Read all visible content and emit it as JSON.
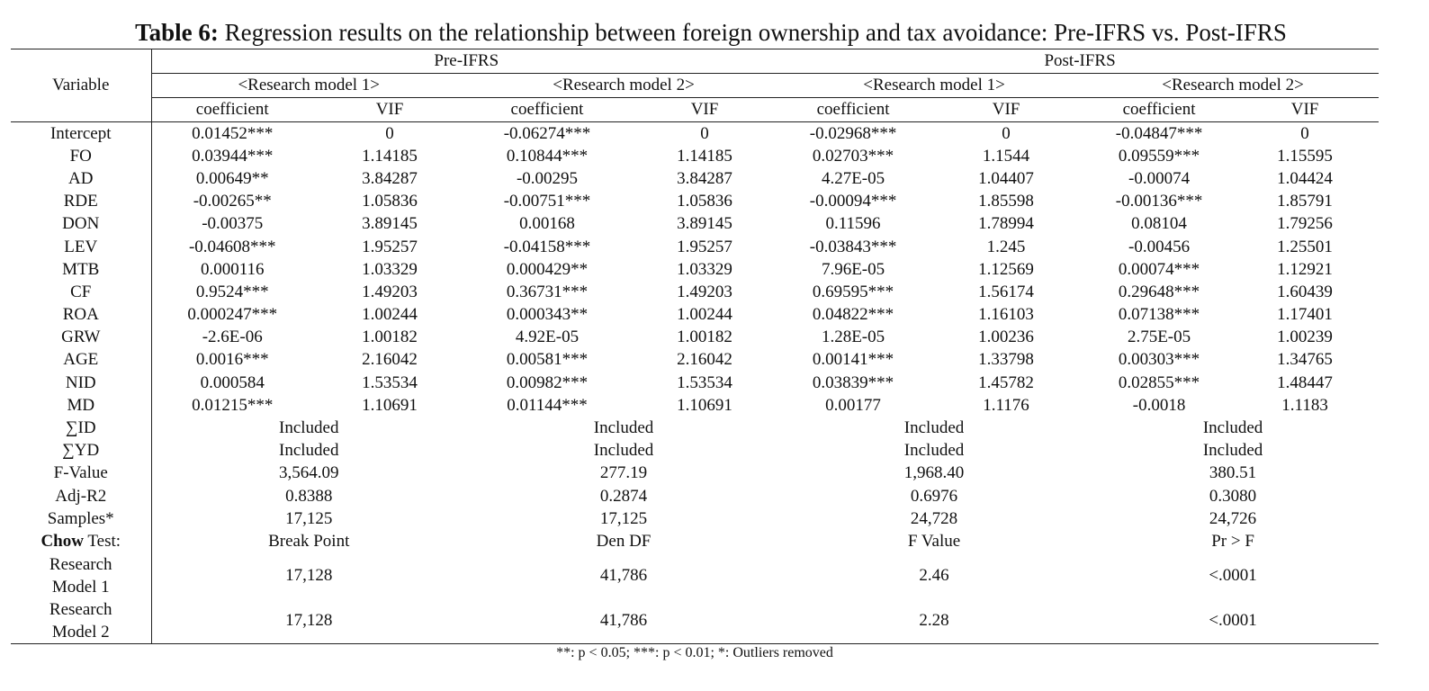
{
  "title": {
    "bold": "Table 6:",
    "text": " Regression results on the relationship between foreign ownership and tax avoidance: Pre-IFRS vs. Post-IFRS"
  },
  "header": {
    "variable": "Variable",
    "pre": "Pre-IFRS",
    "post": "Post-IFRS",
    "models": [
      "<Research model 1>",
      "<Research model 2>",
      "<Research model 1>",
      "<Research model 2>"
    ],
    "coef": "coefficient",
    "vif": "VIF"
  },
  "rows": [
    {
      "var": "Intercept",
      "cells": [
        "0.01452***",
        "0",
        "-0.06274***",
        "0",
        "-0.02968***",
        "0",
        "-0.04847***",
        "0"
      ]
    },
    {
      "var": "FO",
      "cells": [
        "0.03944***",
        "1.14185",
        "0.10844***",
        "1.14185",
        "0.02703***",
        "1.1544",
        "0.09559***",
        "1.15595"
      ]
    },
    {
      "var": "AD",
      "cells": [
        "0.00649**",
        "3.84287",
        "-0.00295",
        "3.84287",
        "4.27E-05",
        "1.04407",
        "-0.00074",
        "1.04424"
      ]
    },
    {
      "var": "RDE",
      "cells": [
        "-0.00265**",
        "1.05836",
        "-0.00751***",
        "1.05836",
        "-0.00094***",
        "1.85598",
        "-0.00136***",
        "1.85791"
      ]
    },
    {
      "var": "DON",
      "cells": [
        "-0.00375",
        "3.89145",
        "0.00168",
        "3.89145",
        "0.11596",
        "1.78994",
        "0.08104",
        "1.79256"
      ]
    },
    {
      "var": "LEV",
      "cells": [
        "-0.04608***",
        "1.95257",
        "-0.04158***",
        "1.95257",
        "-0.03843***",
        "1.245",
        "-0.00456",
        "1.25501"
      ]
    },
    {
      "var": "MTB",
      "cells": [
        "0.000116",
        "1.03329",
        "0.000429**",
        "1.03329",
        "7.96E-05",
        "1.12569",
        "0.00074***",
        "1.12921"
      ]
    },
    {
      "var": "CF",
      "cells": [
        "0.9524***",
        "1.49203",
        "0.36731***",
        "1.49203",
        "0.69595***",
        "1.56174",
        "0.29648***",
        "1.60439"
      ]
    },
    {
      "var": "ROA",
      "cells": [
        "0.000247***",
        "1.00244",
        "0.000343**",
        "1.00244",
        "0.04822***",
        "1.16103",
        "0.07138***",
        "1.17401"
      ]
    },
    {
      "var": "GRW",
      "cells": [
        "-2.6E-06",
        "1.00182",
        "4.92E-05",
        "1.00182",
        "1.28E-05",
        "1.00236",
        "2.75E-05",
        "1.00239"
      ]
    },
    {
      "var": "AGE",
      "cells": [
        "0.0016***",
        "2.16042",
        "0.00581***",
        "2.16042",
        "0.00141***",
        "1.33798",
        "0.00303***",
        "1.34765"
      ]
    },
    {
      "var": "NID",
      "cells": [
        "0.000584",
        "1.53534",
        "0.00982***",
        "1.53534",
        "0.03839***",
        "1.45782",
        "0.02855***",
        "1.48447"
      ]
    },
    {
      "var": "MD",
      "cells": [
        "0.01215***",
        "1.10691",
        "0.01144***",
        "1.10691",
        "0.00177",
        "1.1176",
        "-0.0018",
        "1.1183"
      ]
    }
  ],
  "summary": [
    {
      "var": "∑ID",
      "cells": [
        "Included",
        "Included",
        "Included",
        "Included"
      ]
    },
    {
      "var": "∑YD",
      "cells": [
        "Included",
        "Included",
        "Included",
        "Included"
      ]
    },
    {
      "var": "F-Value",
      "cells": [
        "3,564.09",
        "277.19",
        "1,968.40",
        "380.51"
      ]
    },
    {
      "var": "Adj-R2",
      "cells": [
        "0.8388",
        "0.2874",
        "0.6976",
        "0.3080"
      ]
    },
    {
      "var": "Samples*",
      "cells": [
        "17,125",
        "17,125",
        "24,728",
        "24,726"
      ]
    }
  ],
  "chow": {
    "label_bold": "Chow",
    "label_rest": " Test:",
    "cells": [
      "Break Point",
      "Den DF",
      "F Value",
      "Pr > F"
    ]
  },
  "chow_rows": [
    {
      "line1": "Research",
      "line2": "Model 1",
      "cells": [
        "17,128",
        "41,786",
        "2.46",
        "<.0001"
      ]
    },
    {
      "line1": "Research",
      "line2": "Model 2",
      "cells": [
        "17,128",
        "41,786",
        "2.28",
        "<.0001"
      ]
    }
  ],
  "note": "**: p < 0.05; ***: p < 0.01; *: Outliers removed"
}
